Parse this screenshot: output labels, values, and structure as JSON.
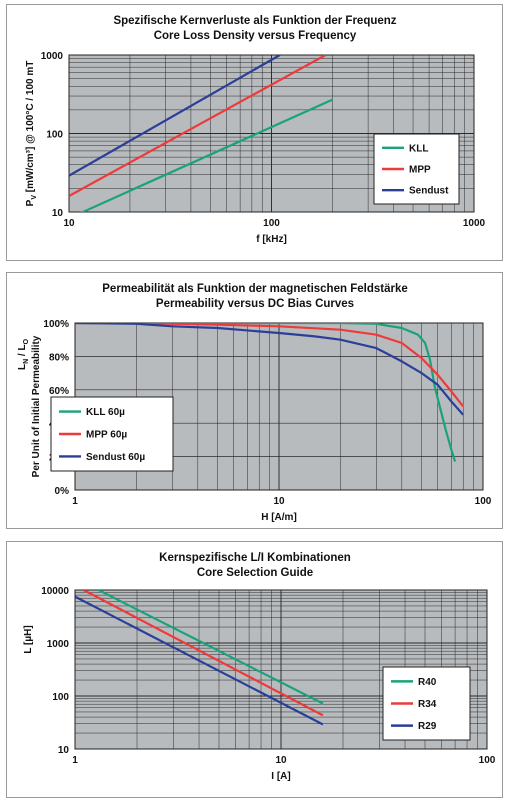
{
  "colors": {
    "plot_bg": "#b8bbbe",
    "grid": "#2a2a2a",
    "green": "#1aa37a",
    "red": "#ee3a3a",
    "blue": "#2b3f99"
  },
  "chart_data": [
    {
      "type": "line",
      "title": "Spezifische Kernverluste als Funktion der Frequenz",
      "subtitle": "Core Loss Density versus Frequency",
      "xlabel": "f [kHz]",
      "ylabel_main": "P",
      "ylabel_sub": "V",
      "ylabel_rest": " [mW/cm³] @ 100°C / 100 mT",
      "x_scale": "log",
      "y_scale": "log",
      "xlim": [
        10,
        1000
      ],
      "ylim": [
        10,
        1000
      ],
      "xticks": [
        10,
        100,
        1000
      ],
      "xtick_labels": [
        "10",
        "100",
        "1000"
      ],
      "yticks": [
        10,
        100,
        1000
      ],
      "ytick_labels": [
        "10",
        "100",
        "1000"
      ],
      "grid": true,
      "legend_position": "right",
      "series": [
        {
          "name": "KLL",
          "color": "#1aa37a",
          "x": [
            11.5,
            200
          ],
          "y": [
            9.8,
            270
          ]
        },
        {
          "name": "MPP",
          "color": "#ee3a3a",
          "x": [
            10,
            185
          ],
          "y": [
            16,
            1000
          ]
        },
        {
          "name": "Sendust",
          "color": "#2b3f99",
          "x": [
            10,
            110
          ],
          "y": [
            29,
            1000
          ]
        }
      ]
    },
    {
      "type": "line",
      "title": "Permeabilität als Funktion der magnetischen Feldstärke",
      "subtitle": "Permeability versus DC Bias Curves",
      "xlabel": "H [A/m]",
      "ylabel_main": "L",
      "ylabel_n_sub": "N",
      "ylabel_mid": " / L",
      "ylabel_o_sub": "O",
      "ylabel_second": "Per Unit of Initial Permeability",
      "x_scale": "log",
      "y_scale": "linear",
      "xlim": [
        1,
        100
      ],
      "ylim": [
        0,
        100
      ],
      "xticks": [
        1,
        10,
        100
      ],
      "xtick_labels": [
        "1",
        "10",
        "100"
      ],
      "yticks": [
        0,
        20,
        40,
        60,
        80,
        100
      ],
      "ytick_labels": [
        "0%",
        "20%",
        "40%",
        "60%",
        "80%",
        "100%"
      ],
      "grid": true,
      "legend_position": "left",
      "series": [
        {
          "name": "KLL 60µ",
          "color": "#1aa37a",
          "x": [
            1,
            2,
            5,
            10,
            20,
            30,
            40,
            48,
            52,
            55,
            58,
            62,
            66,
            70,
            73
          ],
          "y": [
            100,
            100,
            100,
            100,
            100,
            99.5,
            97,
            93,
            88,
            78,
            62,
            48,
            35,
            24,
            17
          ]
        },
        {
          "name": "MPP 60µ",
          "color": "#ee3a3a",
          "x": [
            1,
            2,
            5,
            10,
            20,
            30,
            40,
            50,
            60,
            70,
            80
          ],
          "y": [
            100,
            100,
            99,
            98,
            96,
            93,
            88,
            79,
            69,
            59,
            50
          ]
        },
        {
          "name": "Sendust 60µ",
          "color": "#2b3f99",
          "x": [
            1,
            2,
            3,
            5,
            10,
            15,
            20,
            30,
            40,
            50,
            60,
            70,
            80
          ],
          "y": [
            100,
            99.5,
            98,
            97,
            94,
            92,
            90,
            85,
            77,
            70,
            63,
            53,
            45
          ]
        }
      ]
    },
    {
      "type": "line",
      "title": "Kernspezifische L/I Kombinationen",
      "subtitle": "Core Selection Guide",
      "xlabel": "I [A]",
      "ylabel_main": "L [µH]",
      "x_scale": "log",
      "y_scale": "log",
      "xlim": [
        1,
        100
      ],
      "ylim": [
        10,
        10000
      ],
      "xticks": [
        1,
        10,
        100
      ],
      "xtick_labels": [
        "1",
        "10",
        "100"
      ],
      "yticks": [
        10,
        100,
        1000,
        10000
      ],
      "ytick_labels": [
        "10",
        "100",
        "1000",
        "10000"
      ],
      "grid": true,
      "legend_position": "right",
      "series": [
        {
          "name": "R40",
          "color": "#1aa37a",
          "x": [
            1.3,
            16
          ],
          "y": [
            10000,
            72
          ]
        },
        {
          "name": "R34",
          "color": "#ee3a3a",
          "x": [
            1.1,
            16
          ],
          "y": [
            10000,
            43
          ]
        },
        {
          "name": "R29",
          "color": "#2b3f99",
          "x": [
            1,
            16
          ],
          "y": [
            7500,
            29
          ]
        }
      ]
    }
  ]
}
